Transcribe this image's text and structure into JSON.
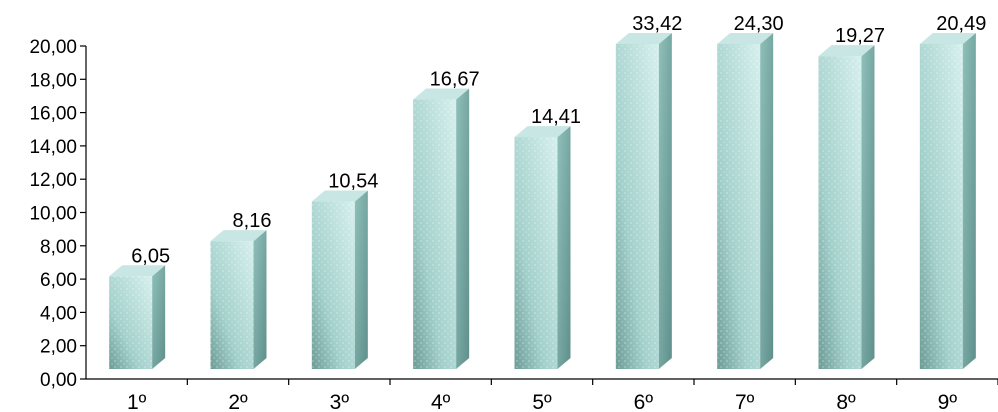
{
  "chart_data": {
    "type": "bar",
    "categories": [
      "1º",
      "2º",
      "3º",
      "4º",
      "5º",
      "6º",
      "7º",
      "8º",
      "9º"
    ],
    "values": [
      6.05,
      8.16,
      10.54,
      16.67,
      14.41,
      33.42,
      24.3,
      19.27,
      20.49
    ],
    "data_labels": [
      "6,05",
      "8,16",
      "10,54",
      "16,67",
      "14,41",
      "33,42",
      "24,30",
      "19,27",
      "20,49"
    ],
    "y_ticks": [
      "0,00",
      "2,00",
      "4,00",
      "6,00",
      "8,00",
      "10,00",
      "12,00",
      "14,00",
      "16,00",
      "18,00",
      "20,00"
    ],
    "ylim": [
      0,
      20
    ],
    "grid": false,
    "legend": "none",
    "style": "3d-bar",
    "colors": {
      "bar_front": "#a9d4d0",
      "bar_side": "#7fb3ad",
      "bar_top": "#c8e6e3",
      "axis": "#000000"
    }
  }
}
